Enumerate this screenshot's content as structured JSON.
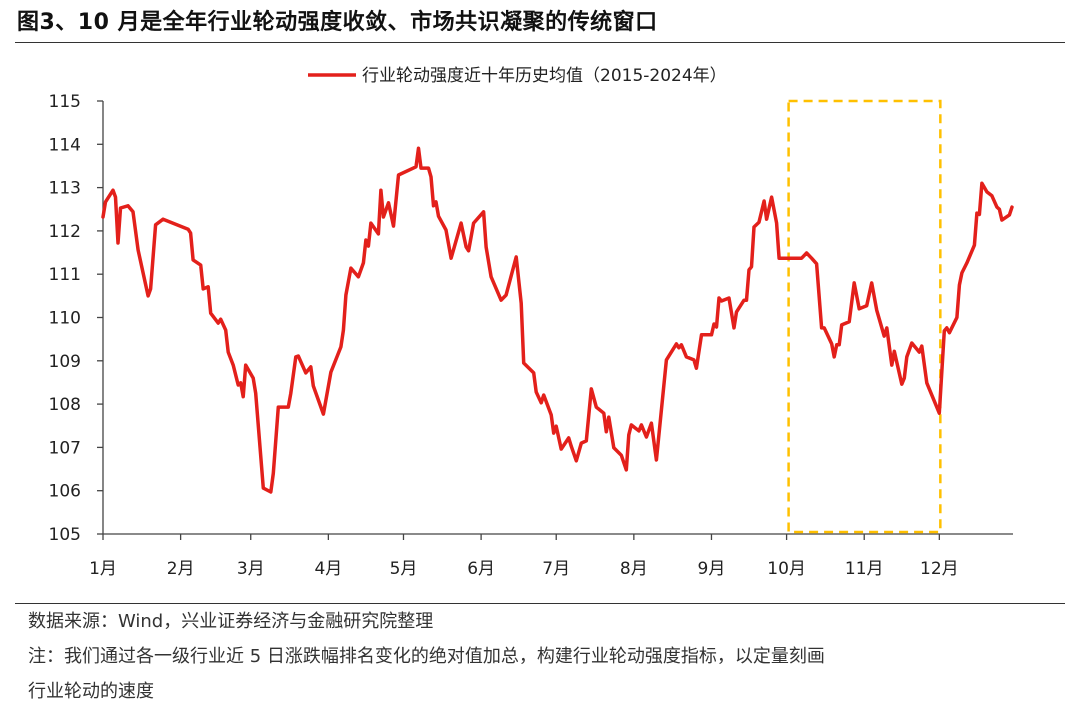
{
  "title": "图3、10 月是全年行业轮动强度收敛、市场共识凝聚的传统窗口",
  "footer": {
    "source": "数据来源：Wind，兴业证券经济与金融研究院整理",
    "note_line1": "注：我们通过各一级行业近 5 日涨跌幅排名变化的绝对值加总，构建行业轮动强度指标，以定量刻画",
    "note_line2": "行业轮动的速度"
  },
  "chart_data": {
    "type": "line",
    "title": "",
    "xlabel": "",
    "ylabel": "",
    "ylim": [
      105,
      115
    ],
    "yticks": [
      "105",
      "106",
      "107",
      "108",
      "109",
      "110",
      "111",
      "112",
      "113",
      "114",
      "115"
    ],
    "xticks": [
      "1月",
      "2月",
      "3月",
      "4月",
      "5月",
      "6月",
      "7月",
      "8月",
      "9月",
      "10月",
      "11月",
      "12月"
    ],
    "grid": false,
    "legend_position": "top-center",
    "highlight": {
      "start": "10-01",
      "end": "12-01",
      "ylim": [
        105,
        115
      ],
      "color": "#FFC000",
      "style": "dashed"
    },
    "series": [
      {
        "name": "行业轮动强度近十年历史均值（2015-2024年）",
        "color": "#E3201B",
        "points": [
          [
            "01-01",
            112.32
          ],
          [
            "01-02",
            112.67
          ],
          [
            "01-05",
            112.94
          ],
          [
            "01-06",
            112.78
          ],
          [
            "01-07",
            111.72
          ],
          [
            "01-08",
            112.53
          ],
          [
            "01-11",
            112.58
          ],
          [
            "01-13",
            112.44
          ],
          [
            "01-15",
            111.56
          ],
          [
            "01-19",
            110.5
          ],
          [
            "01-20",
            110.66
          ],
          [
            "01-22",
            112.14
          ],
          [
            "01-25",
            112.27
          ],
          [
            "02-04",
            112.04
          ],
          [
            "02-05",
            111.95
          ],
          [
            "02-06",
            111.33
          ],
          [
            "02-09",
            111.21
          ],
          [
            "02-10",
            110.66
          ],
          [
            "02-12",
            110.71
          ],
          [
            "02-13",
            110.1
          ],
          [
            "02-16",
            109.87
          ],
          [
            "02-17",
            109.96
          ],
          [
            "02-19",
            109.71
          ],
          [
            "02-20",
            109.2
          ],
          [
            "02-22",
            108.9
          ],
          [
            "02-24",
            108.44
          ],
          [
            "02-25",
            108.49
          ],
          [
            "02-26",
            108.17
          ],
          [
            "02-27",
            108.9
          ],
          [
            "03-02",
            108.6
          ],
          [
            "03-03",
            108.25
          ],
          [
            "03-06",
            106.06
          ],
          [
            "03-09",
            105.97
          ],
          [
            "03-10",
            106.4
          ],
          [
            "03-12",
            107.93
          ],
          [
            "03-16",
            107.93
          ],
          [
            "03-17",
            108.25
          ],
          [
            "03-19",
            109.09
          ],
          [
            "03-20",
            109.11
          ],
          [
            "03-23",
            108.72
          ],
          [
            "03-25",
            108.86
          ],
          [
            "03-26",
            108.42
          ],
          [
            "03-30",
            107.77
          ],
          [
            "04-02",
            108.74
          ],
          [
            "04-06",
            109.32
          ],
          [
            "04-07",
            109.71
          ],
          [
            "04-08",
            110.52
          ],
          [
            "04-10",
            111.14
          ],
          [
            "04-13",
            110.94
          ],
          [
            "04-15",
            111.26
          ],
          [
            "04-16",
            111.79
          ],
          [
            "04-17",
            111.65
          ],
          [
            "04-18",
            112.18
          ],
          [
            "04-21",
            111.93
          ],
          [
            "04-22",
            112.94
          ],
          [
            "04-23",
            112.32
          ],
          [
            "04-25",
            112.65
          ],
          [
            "04-27",
            112.11
          ],
          [
            "04-29",
            113.29
          ],
          [
            "05-06",
            113.48
          ],
          [
            "05-07",
            113.91
          ],
          [
            "05-08",
            113.45
          ],
          [
            "05-11",
            113.45
          ],
          [
            "05-12",
            113.25
          ],
          [
            "05-13",
            112.58
          ],
          [
            "05-14",
            112.67
          ],
          [
            "05-15",
            112.34
          ],
          [
            "05-18",
            112.02
          ],
          [
            "05-20",
            111.37
          ],
          [
            "05-24",
            112.18
          ],
          [
            "05-26",
            111.63
          ],
          [
            "05-27",
            111.54
          ],
          [
            "05-29",
            112.18
          ],
          [
            "06-02",
            112.44
          ],
          [
            "06-03",
            111.63
          ],
          [
            "06-05",
            110.94
          ],
          [
            "06-09",
            110.4
          ],
          [
            "06-11",
            110.52
          ],
          [
            "06-15",
            111.4
          ],
          [
            "06-17",
            110.33
          ],
          [
            "06-18",
            108.95
          ],
          [
            "06-22",
            108.72
          ],
          [
            "06-23",
            108.28
          ],
          [
            "06-25",
            108.03
          ],
          [
            "06-26",
            108.21
          ],
          [
            "06-29",
            107.75
          ],
          [
            "06-30",
            107.33
          ],
          [
            "07-01",
            107.49
          ],
          [
            "07-03",
            106.96
          ],
          [
            "07-06",
            107.22
          ],
          [
            "07-07",
            107.03
          ],
          [
            "07-09",
            106.69
          ],
          [
            "07-11",
            107.1
          ],
          [
            "07-13",
            107.15
          ],
          [
            "07-15",
            108.35
          ],
          [
            "07-17",
            107.93
          ],
          [
            "07-20",
            107.79
          ],
          [
            "07-21",
            107.36
          ],
          [
            "07-22",
            107.7
          ],
          [
            "07-24",
            106.99
          ],
          [
            "07-27",
            106.82
          ],
          [
            "07-29",
            106.48
          ],
          [
            "07-30",
            107.29
          ],
          [
            "07-31",
            107.52
          ],
          [
            "08-03",
            107.38
          ],
          [
            "08-04",
            107.52
          ],
          [
            "08-06",
            107.24
          ],
          [
            "08-08",
            107.56
          ],
          [
            "08-10",
            106.71
          ],
          [
            "08-14",
            109.02
          ],
          [
            "08-18",
            109.39
          ],
          [
            "08-19",
            109.3
          ],
          [
            "08-20",
            109.37
          ],
          [
            "08-22",
            109.09
          ],
          [
            "08-25",
            109.02
          ],
          [
            "08-26",
            108.83
          ],
          [
            "08-28",
            109.6
          ],
          [
            "09-01",
            109.6
          ],
          [
            "09-02",
            109.85
          ],
          [
            "09-03",
            109.78
          ],
          [
            "09-04",
            110.45
          ],
          [
            "09-05",
            110.38
          ],
          [
            "09-08",
            110.45
          ],
          [
            "09-10",
            109.76
          ],
          [
            "09-11",
            110.13
          ],
          [
            "09-14",
            110.4
          ],
          [
            "09-15",
            110.4
          ],
          [
            "09-16",
            111.1
          ],
          [
            "09-17",
            111.17
          ],
          [
            "09-18",
            112.09
          ],
          [
            "09-20",
            112.2
          ],
          [
            "09-22",
            112.69
          ],
          [
            "09-23",
            112.27
          ],
          [
            "09-25",
            112.78
          ],
          [
            "09-27",
            112.18
          ],
          [
            "09-28",
            111.37
          ],
          [
            "10-07",
            111.37
          ],
          [
            "10-09",
            111.49
          ],
          [
            "10-11",
            111.37
          ],
          [
            "10-13",
            111.24
          ],
          [
            "10-15",
            109.76
          ],
          [
            "10-16",
            109.76
          ],
          [
            "10-19",
            109.39
          ],
          [
            "10-20",
            109.09
          ],
          [
            "10-21",
            109.37
          ],
          [
            "10-22",
            109.37
          ],
          [
            "10-23",
            109.83
          ],
          [
            "10-26",
            109.9
          ],
          [
            "10-28",
            110.8
          ],
          [
            "10-30",
            110.2
          ],
          [
            "11-02",
            110.27
          ],
          [
            "11-04",
            110.8
          ],
          [
            "11-06",
            110.17
          ],
          [
            "11-09",
            109.57
          ],
          [
            "11-10",
            109.76
          ],
          [
            "11-12",
            108.9
          ],
          [
            "11-13",
            109.22
          ],
          [
            "11-16",
            108.46
          ],
          [
            "11-17",
            108.6
          ],
          [
            "11-18",
            109.09
          ],
          [
            "11-20",
            109.41
          ],
          [
            "11-23",
            109.2
          ],
          [
            "11-24",
            109.34
          ],
          [
            "11-26",
            108.49
          ],
          [
            "12-01",
            107.79
          ],
          [
            "12-03",
            109.69
          ],
          [
            "12-04",
            109.76
          ],
          [
            "12-05",
            109.65
          ],
          [
            "12-08",
            110.0
          ],
          [
            "12-09",
            110.75
          ],
          [
            "12-10",
            111.03
          ],
          [
            "12-12",
            111.26
          ],
          [
            "12-15",
            111.67
          ],
          [
            "12-16",
            112.41
          ],
          [
            "12-17",
            112.38
          ],
          [
            "12-18",
            113.1
          ],
          [
            "12-20",
            112.9
          ],
          [
            "12-22",
            112.81
          ],
          [
            "12-24",
            112.55
          ],
          [
            "12-25",
            112.5
          ],
          [
            "12-26",
            112.25
          ],
          [
            "12-29",
            112.37
          ],
          [
            "12-30",
            112.55
          ]
        ]
      }
    ]
  }
}
